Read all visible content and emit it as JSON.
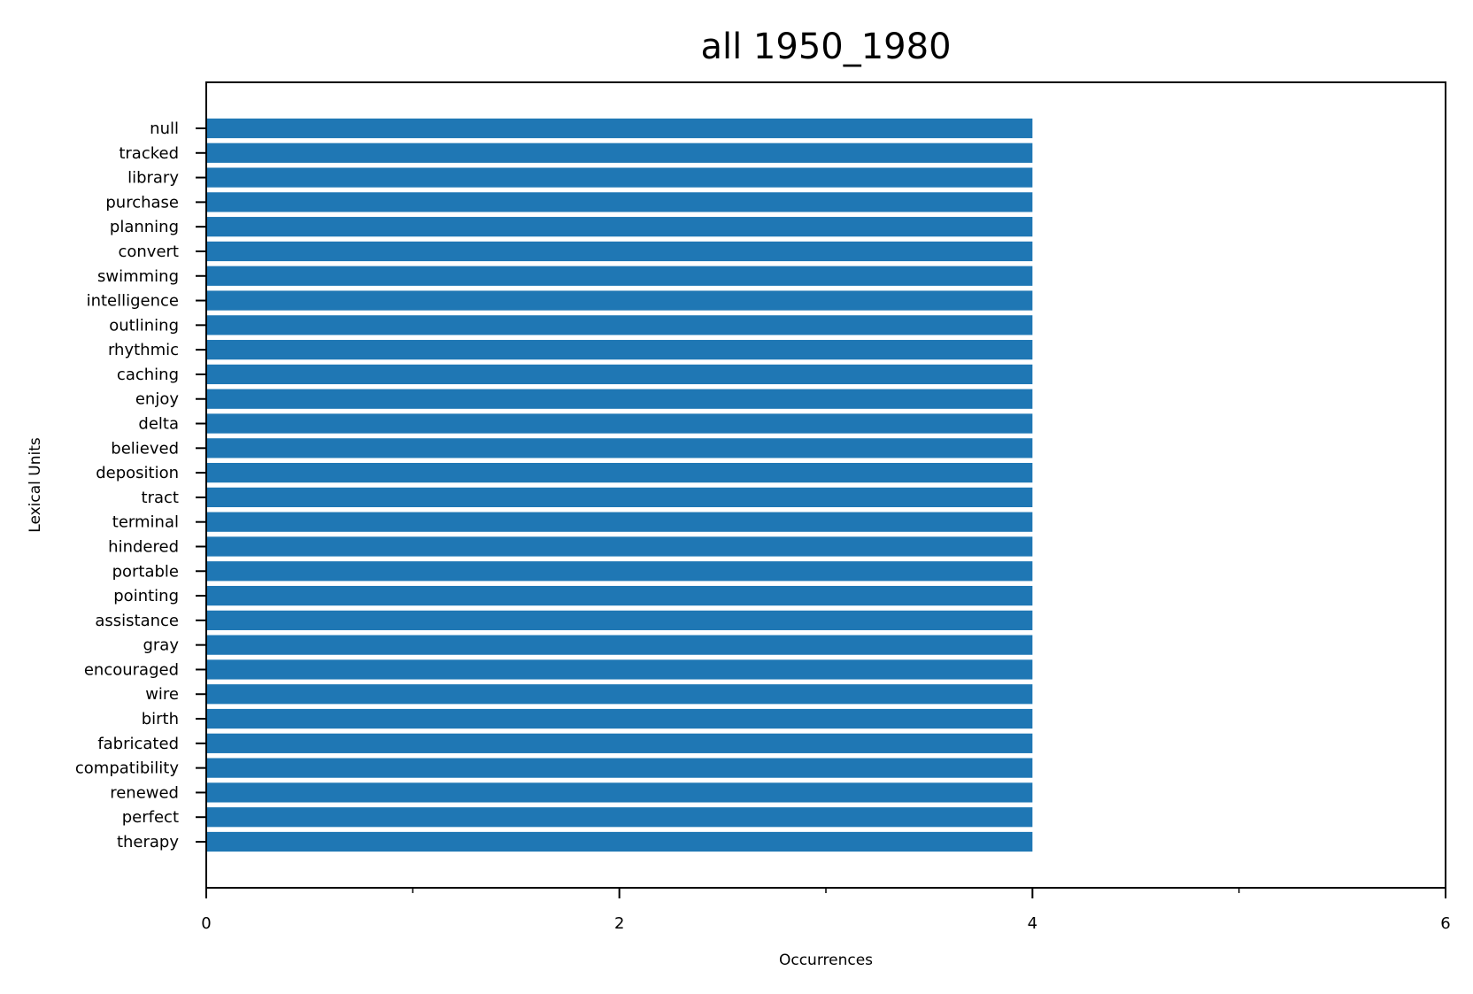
{
  "chart_data": {
    "type": "bar",
    "orientation": "horizontal",
    "title": "all 1950_1980",
    "xlabel": "Occurrences",
    "ylabel": "Lexical Units",
    "categories": [
      "null",
      "tracked",
      "library",
      "purchase",
      "planning",
      "convert",
      "swimming",
      "intelligence",
      "outlining",
      "rhythmic",
      "caching",
      "enjoy",
      "delta",
      "believed",
      "deposition",
      "tract",
      "terminal",
      "hindered",
      "portable",
      "pointing",
      "assistance",
      "gray",
      "encouraged",
      "wire",
      "birth",
      "fabricated",
      "compatibility",
      "renewed",
      "perfect",
      "therapy"
    ],
    "values": [
      4,
      4,
      4,
      4,
      4,
      4,
      4,
      4,
      4,
      4,
      4,
      4,
      4,
      4,
      4,
      4,
      4,
      4,
      4,
      4,
      4,
      4,
      4,
      4,
      4,
      4,
      4,
      4,
      4,
      4
    ],
    "xlim": [
      0,
      6
    ],
    "xticks": [
      0,
      2,
      4,
      6
    ],
    "xticks_minor": [
      1,
      3,
      5
    ],
    "grid": false,
    "bar_color": "#1f77b4"
  }
}
